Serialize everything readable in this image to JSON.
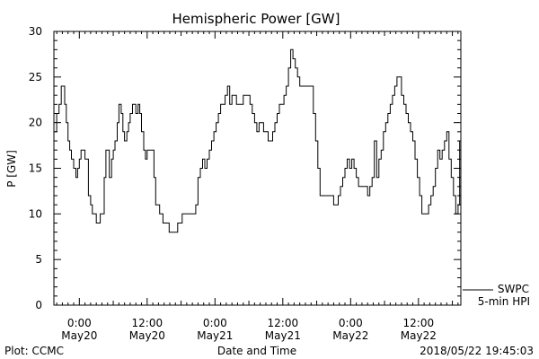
{
  "chart_data": {
    "type": "line",
    "title": "Hemispheric Power [GW]",
    "ylabel": "P [GW]",
    "xlabel": "Date and Time",
    "ylim": [
      0,
      30
    ],
    "yticks": [
      0,
      5,
      10,
      15,
      20,
      25,
      30
    ],
    "xlim_hours": [
      -4.5,
      67.5
    ],
    "xticks": [
      {
        "hour": 0,
        "time": "0:00",
        "date": "May20"
      },
      {
        "hour": 12,
        "time": "12:00",
        "date": "May20"
      },
      {
        "hour": 24,
        "time": "0:00",
        "date": "May21"
      },
      {
        "hour": 36,
        "time": "12:00",
        "date": "May21"
      },
      {
        "hour": 48,
        "time": "0:00",
        "date": "May22"
      },
      {
        "hour": 60,
        "time": "12:00",
        "date": "May22"
      }
    ],
    "grid": false,
    "legend": {
      "position": "bottom-right",
      "entries": [
        "SWPC",
        "5-min HPI"
      ]
    },
    "series": [
      {
        "name": "SWPC",
        "x_hours": [
          -4.3,
          -4.0,
          -3.6,
          -3.2,
          -2.9,
          -2.6,
          -2.3,
          -2.0,
          -1.7,
          -1.4,
          -1.0,
          -0.6,
          -0.3,
          0.0,
          0.3,
          0.6,
          1.0,
          1.3,
          1.6,
          2.0,
          2.3,
          2.6,
          3.0,
          3.3,
          3.7,
          4.0,
          4.4,
          4.7,
          5.0,
          5.3,
          5.7,
          6.0,
          6.3,
          6.7,
          7.0,
          7.4,
          7.7,
          8.0,
          8.4,
          8.7,
          9.0,
          9.4,
          9.7,
          10.0,
          10.4,
          10.7,
          11.0,
          11.4,
          11.7,
          12.0,
          12.3,
          12.6,
          12.9,
          13.2,
          13.5,
          13.8,
          14.2,
          14.5,
          14.8,
          15.2,
          15.5,
          15.9,
          16.2,
          16.6,
          17.0,
          17.4,
          17.8,
          18.2,
          18.6,
          19.0,
          19.4,
          19.8,
          20.2,
          20.6,
          21.0,
          21.4,
          21.8,
          22.2,
          22.6,
          23.0,
          23.4,
          23.8,
          24.2,
          24.6,
          25.0,
          25.4,
          25.8,
          26.2,
          26.6,
          27.0,
          27.4,
          27.8,
          28.2,
          28.6,
          29.0,
          29.4,
          29.8,
          30.2,
          30.6,
          31.0,
          31.4,
          31.8,
          32.2,
          32.6,
          33.0,
          33.4,
          33.8,
          34.2,
          34.6,
          35.0,
          35.4,
          35.8,
          36.2,
          36.6,
          37.0,
          37.4,
          37.8,
          38.2,
          38.6,
          39.0,
          39.4,
          39.8,
          40.2,
          40.6,
          41.0,
          41.4,
          41.8,
          42.2,
          42.6,
          43.0,
          43.4,
          43.8,
          44.2,
          44.6,
          45.0,
          45.4,
          45.8,
          46.2,
          46.6,
          47.0,
          47.4,
          47.8,
          48.2,
          48.6,
          49.0,
          49.4,
          49.8,
          50.2,
          50.6,
          51.0,
          51.4,
          51.8,
          52.2,
          52.6,
          53.0,
          53.4,
          53.8,
          54.2,
          54.6,
          55.0,
          55.4,
          55.8,
          56.2,
          56.6,
          57.0,
          57.4,
          57.8,
          58.2,
          58.6,
          59.0,
          59.4,
          59.8,
          60.2,
          60.6,
          61.0,
          61.4,
          61.8,
          62.2,
          62.6,
          63.0,
          63.4,
          63.8,
          64.2,
          64.6,
          65.0,
          65.4,
          65.8,
          66.2,
          66.6,
          67.0,
          67.3
        ],
        "values": [
          19,
          21,
          22,
          24,
          24,
          22,
          20,
          18,
          17,
          16,
          15,
          14,
          15,
          16,
          17,
          17,
          16,
          16,
          12,
          11,
          10,
          10,
          9,
          9,
          10,
          10,
          14,
          17,
          17,
          14,
          16,
          17,
          18,
          20,
          22,
          21,
          19,
          18,
          19,
          20,
          21,
          22,
          22,
          21,
          22,
          21,
          19,
          17,
          16,
          17,
          17,
          17,
          17,
          14,
          11,
          11,
          10,
          10,
          9,
          9,
          9,
          8,
          8,
          8,
          8,
          9,
          9,
          10,
          10,
          10,
          10,
          10,
          10,
          11,
          14,
          15,
          16,
          15,
          16,
          17,
          18,
          19,
          20,
          21,
          22,
          22,
          23,
          24,
          22,
          23,
          23,
          22,
          22,
          22,
          23,
          23,
          23,
          22,
          21,
          20,
          19,
          20,
          20,
          19,
          19,
          18,
          18,
          19,
          20,
          21,
          22,
          22,
          23,
          24,
          26,
          28,
          27,
          26,
          25,
          24,
          24,
          24,
          24,
          24,
          24,
          21,
          18,
          15,
          12,
          12,
          12,
          12,
          12,
          12,
          11,
          11,
          12,
          13,
          14,
          15,
          16,
          15,
          16,
          15,
          14,
          13,
          13,
          13,
          13,
          12,
          13,
          14,
          18,
          14,
          16,
          17,
          19,
          20,
          21,
          22,
          23,
          24,
          25,
          25,
          23,
          22,
          21,
          20,
          19,
          18,
          16,
          14,
          12,
          10,
          10,
          10,
          11,
          12,
          13,
          15,
          17,
          16,
          17,
          18,
          19,
          16,
          14,
          12,
          10,
          11,
          18
        ]
      }
    ]
  },
  "footer": {
    "left": "Plot: CCMC",
    "right": "2018/05/22 19:45:03"
  }
}
